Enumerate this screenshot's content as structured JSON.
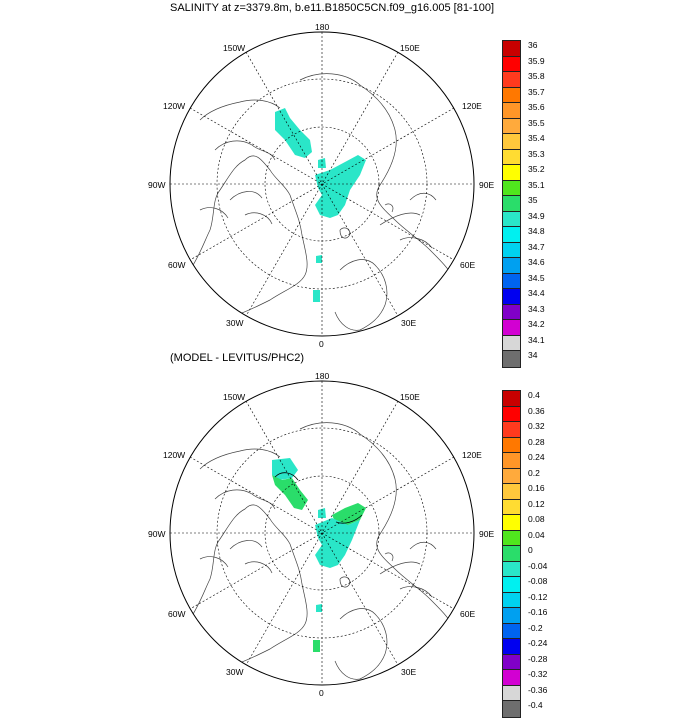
{
  "top_title": "SALINITY at z=3379.8m, b.e11.B1850C5CN.f09_g16.005 [81-100]",
  "bottom_title": "(MODEL - LEVITUS/PHC2)",
  "longitude_labels": {
    "lon_180": "180",
    "lon_150w": "150W",
    "lon_150e": "150E",
    "lon_120w": "120W",
    "lon_120e": "120E",
    "lon_90w": "90W",
    "lon_90e": "90E",
    "lon_60w": "60W",
    "lon_60e": "60E",
    "lon_30w": "30W",
    "lon_30e": "30E",
    "lon_0": "0"
  },
  "top_colorbar": {
    "labels": [
      "36",
      "35.9",
      "35.8",
      "35.7",
      "35.6",
      "35.5",
      "35.4",
      "35.3",
      "35.2",
      "35.1",
      "35",
      "34.9",
      "34.8",
      "34.7",
      "34.6",
      "34.5",
      "34.4",
      "34.3",
      "34.2",
      "34.1",
      "34"
    ],
    "colors": [
      "#c80000",
      "#ff0000",
      "#ff3a1e",
      "#ff7800",
      "#ff9628",
      "#ffaa3c",
      "#ffc83c",
      "#ffdc32",
      "#ffff00",
      "#50e61e",
      "#2add6a",
      "#2ae6c8",
      "#00f0f0",
      "#00d2f0",
      "#00a0f0",
      "#0064f0",
      "#0000f0",
      "#8000c8",
      "#d200d2",
      "#d7d7d7",
      "#6e6e6e"
    ]
  },
  "bottom_colorbar": {
    "labels": [
      "0.4",
      "0.36",
      "0.32",
      "0.28",
      "0.24",
      "0.2",
      "0.16",
      "0.12",
      "0.08",
      "0.04",
      "0",
      "-0.04",
      "-0.08",
      "-0.12",
      "-0.16",
      "-0.2",
      "-0.24",
      "-0.28",
      "-0.32",
      "-0.36",
      "-0.4"
    ],
    "colors": [
      "#c80000",
      "#ff0000",
      "#ff3a1e",
      "#ff7800",
      "#ff9628",
      "#ffaa3c",
      "#ffc83c",
      "#ffdc32",
      "#ffff00",
      "#50e61e",
      "#2add6a",
      "#2ae6c8",
      "#00f0f0",
      "#00d2f0",
      "#00a0f0",
      "#0064f0",
      "#0000f0",
      "#8000c8",
      "#d200d2",
      "#d7d7d7",
      "#6e6e6e"
    ]
  }
}
